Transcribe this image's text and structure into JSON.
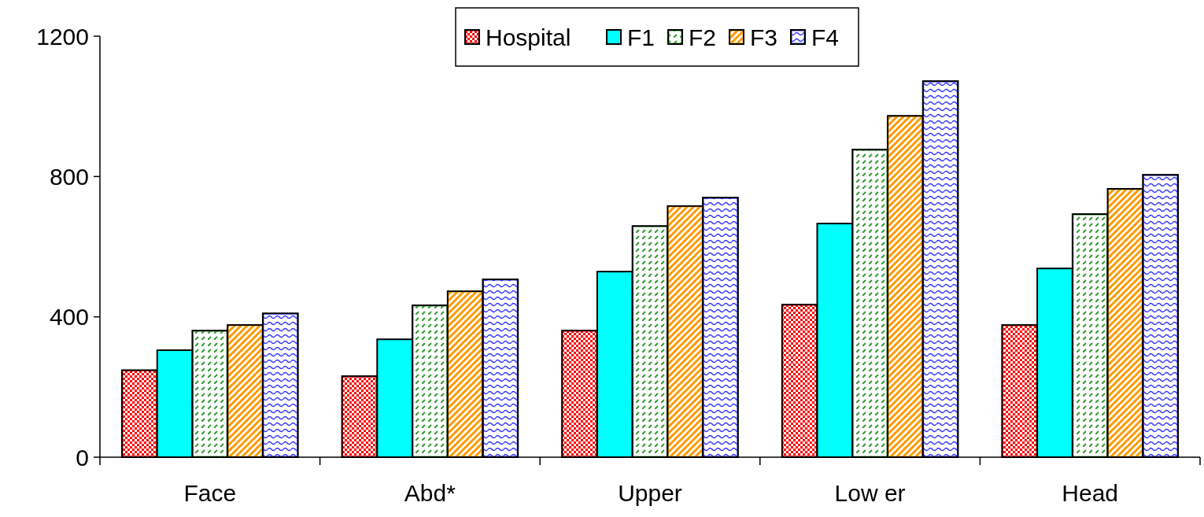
{
  "chart_data": {
    "type": "bar",
    "categories": [
      "Face",
      "Abd*",
      "Upper",
      "Low er",
      "Head"
    ],
    "series": [
      {
        "name": "Hospital",
        "color": "#ff0000",
        "values": [
          248,
          231,
          361,
          435,
          377
        ]
      },
      {
        "name": "F1",
        "color": "#00ffff",
        "values": [
          305,
          336,
          529,
          666,
          538
        ]
      },
      {
        "name": "F2",
        "color": "#339933",
        "values": [
          361,
          433,
          659,
          877,
          693
        ]
      },
      {
        "name": "F3",
        "color": "#ff9900",
        "values": [
          377,
          473,
          716,
          973,
          765
        ]
      },
      {
        "name": "F4",
        "color": "#3333ff",
        "values": [
          410,
          507,
          740,
          1072,
          805
        ]
      }
    ],
    "ylim": [
      0,
      1200
    ],
    "yticks": [
      0,
      400,
      800,
      1200
    ],
    "grid": false,
    "legend": "top"
  }
}
